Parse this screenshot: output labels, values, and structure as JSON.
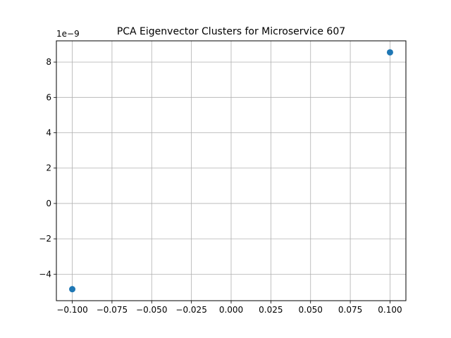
{
  "chart_data": {
    "type": "scatter",
    "title": "PCA Eigenvector Clusters for Microservice 607",
    "xlabel": "",
    "ylabel": "",
    "y_offset_label": "1e−9",
    "xlim": [
      -0.11,
      0.11
    ],
    "ylim": [
      -5.5,
      9.2
    ],
    "y_scale_note": "y values shown in units of 1e-9",
    "grid": true,
    "x_ticks": [
      -0.1,
      -0.075,
      -0.05,
      -0.025,
      0.0,
      0.025,
      0.05,
      0.075,
      0.1
    ],
    "x_tick_labels": [
      "−0.100",
      "−0.075",
      "−0.050",
      "−0.025",
      "0.000",
      "0.025",
      "0.050",
      "0.075",
      "0.100"
    ],
    "y_ticks": [
      -4,
      -2,
      0,
      2,
      4,
      6,
      8
    ],
    "y_tick_labels": [
      "−4",
      "−2",
      "0",
      "2",
      "4",
      "6",
      "8"
    ],
    "series": [
      {
        "color": "#1f77b4",
        "points": [
          {
            "x": -0.1,
            "y": -4.85
          },
          {
            "x": 0.1,
            "y": 8.55
          }
        ]
      }
    ]
  }
}
